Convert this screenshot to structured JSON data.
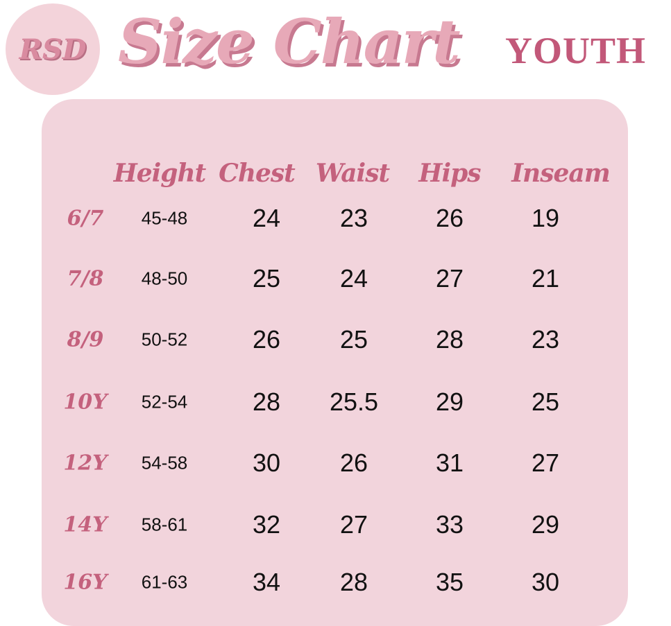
{
  "logo": {
    "text": "RSD"
  },
  "title": "Size Chart",
  "subtitle": "YOUTH",
  "colors": {
    "card": "#f2d4dc",
    "accent": "#c4617d",
    "title": "#e7a9b8"
  },
  "headers": [
    "Height",
    "Chest",
    "Waist",
    "Hips",
    "Inseam"
  ],
  "rows": [
    {
      "size": "6/7",
      "height": "45-48",
      "chest": "24",
      "waist": "23",
      "hips": "26",
      "inseam": "19"
    },
    {
      "size": "7/8",
      "height": "48-50",
      "chest": "25",
      "waist": "24",
      "hips": "27",
      "inseam": "21"
    },
    {
      "size": "8/9",
      "height": "50-52",
      "chest": "26",
      "waist": "25",
      "hips": "28",
      "inseam": "23"
    },
    {
      "size": "10Y",
      "height": "52-54",
      "chest": "28",
      "waist": "25.5",
      "hips": "29",
      "inseam": "25"
    },
    {
      "size": "12Y",
      "height": "54-58",
      "chest": "30",
      "waist": "26",
      "hips": "31",
      "inseam": "27"
    },
    {
      "size": "14Y",
      "height": "58-61",
      "chest": "32",
      "waist": "27",
      "hips": "33",
      "inseam": "29"
    },
    {
      "size": "16Y",
      "height": "61-63",
      "chest": "34",
      "waist": "28",
      "hips": "35",
      "inseam": "30"
    }
  ]
}
